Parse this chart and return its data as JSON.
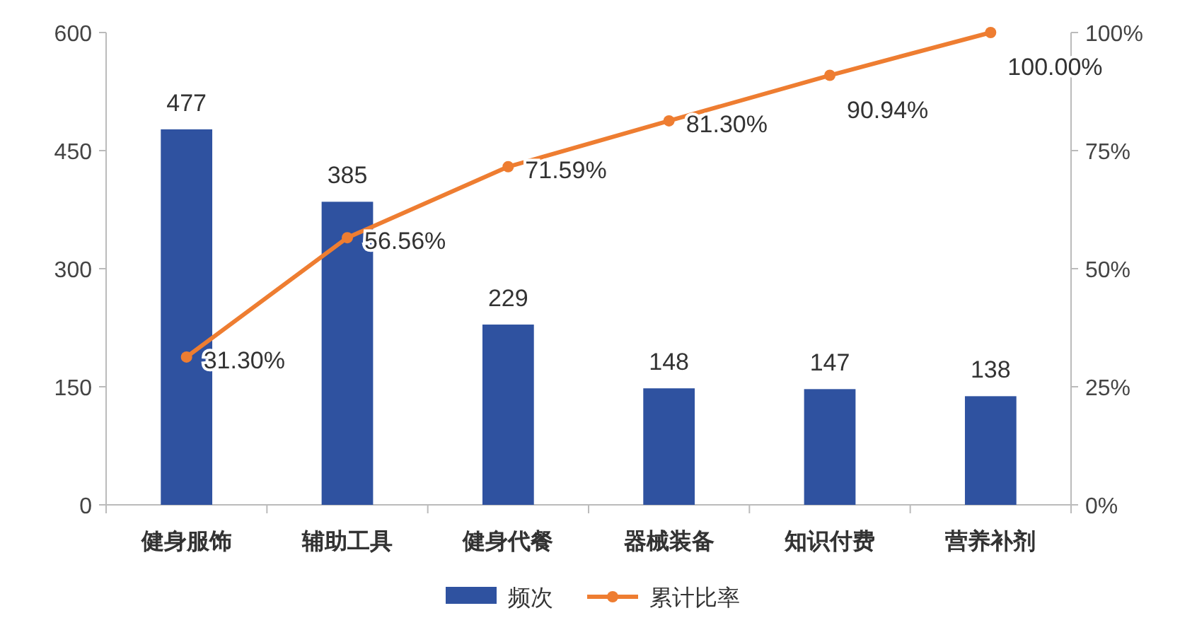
{
  "chart_data": {
    "type": "bar",
    "categories": [
      "健身服饰",
      "辅助工具",
      "健身代餐",
      "器械装备",
      "知识付费",
      "营养补剂"
    ],
    "series": [
      {
        "name": "频次",
        "color": "#2f52a0",
        "values": [
          477,
          385,
          229,
          148,
          147,
          138
        ],
        "value_labels": [
          "477",
          "385",
          "229",
          "148",
          "147",
          "138"
        ]
      },
      {
        "name": "累计比率",
        "type": "line",
        "axis": "y2",
        "color": "#ee7d31",
        "marker": "circle",
        "values": [
          31.3,
          56.56,
          71.59,
          81.3,
          90.94,
          100.0
        ],
        "value_labels": [
          "31.30%",
          "56.56%",
          "71.59%",
          "81.30%",
          "90.94%",
          "100.00%"
        ]
      }
    ],
    "ylim": [
      0,
      600
    ],
    "yticks": [
      0,
      150,
      300,
      450,
      600
    ],
    "y2lim": [
      0,
      100
    ],
    "y2ticks": [
      {
        "value": 0,
        "label": "0%"
      },
      {
        "value": 25,
        "label": "25%"
      },
      {
        "value": 50,
        "label": "50%"
      },
      {
        "value": 75,
        "label": "75%"
      },
      {
        "value": 100,
        "label": "100%"
      }
    ],
    "grid": false,
    "legend": "bottom"
  }
}
